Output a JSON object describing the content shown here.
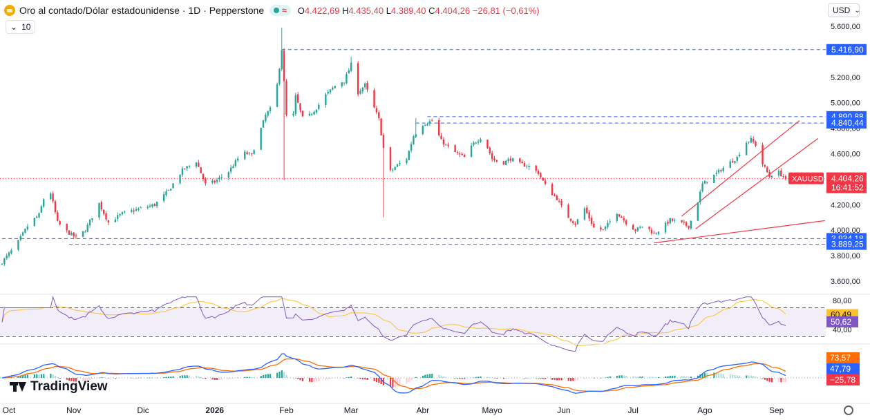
{
  "header": {
    "title": "Oro al contado/Dólar estadounidense · 1D · Pepperstone",
    "wave_glyph": "≈",
    "o_label": "O",
    "o_value": "4.422,69",
    "h_label": "H",
    "h_value": "4.435,40",
    "l_label": "L",
    "l_value": "4.389,40",
    "c_label": "C",
    "c_value": "4.404,26",
    "change": "−26,81 (−0,61%)"
  },
  "indicator_toggle": {
    "chevron": "⌄",
    "count": "10"
  },
  "currency": {
    "label": "USD",
    "chevron": "⌄"
  },
  "logo": {
    "text": "TradingView"
  },
  "colors": {
    "up": "#26a69a",
    "down": "#f23645",
    "level": "#2962ff",
    "trend": "#f23645",
    "rsi": "#7e57c2",
    "rsi_ma": "#fbc02d",
    "macd": "#2962ff",
    "signal": "#ff6d00"
  },
  "chart_data": [
    {
      "type": "candlestick",
      "title": "Oro al contado/Dólar estadounidense · 1D · Pepperstone",
      "symbol": "XAUUSD",
      "yticks": [
        "5.600,00",
        "5.400,00",
        "5.200,00",
        "5.000,00",
        "4.800,00",
        "4.600,00",
        "4.400,00",
        "4.200,00",
        "4.000,00",
        "3.800,00",
        "3.600,00"
      ],
      "ylim": [
        3530,
        5640
      ],
      "x_labels": [
        {
          "label": "Oct",
          "day": 0
        },
        {
          "label": "Nov",
          "day": 31
        },
        {
          "label": "Dic",
          "day": 61
        },
        {
          "label": "2026",
          "day": 92
        },
        {
          "label": "Feb",
          "day": 123
        },
        {
          "label": "Mar",
          "day": 151
        },
        {
          "label": "Abr",
          "day": 182
        },
        {
          "label": "Mayo",
          "day": 212
        },
        {
          "label": "Jun",
          "day": 243
        },
        {
          "label": "Jul",
          "day": 273
        },
        {
          "label": "Ago",
          "day": 304
        },
        {
          "label": "Sep",
          "day": 335
        }
      ],
      "anchors": [
        [
          0,
          3750
        ],
        [
          6,
          3880
        ],
        [
          12,
          4060
        ],
        [
          16,
          4120
        ],
        [
          20,
          4370
        ],
        [
          24,
          4060
        ],
        [
          28,
          3990
        ],
        [
          32,
          3940
        ],
        [
          36,
          4000
        ],
        [
          42,
          4210
        ],
        [
          46,
          4060
        ],
        [
          52,
          4130
        ],
        [
          60,
          4170
        ],
        [
          66,
          4200
        ],
        [
          72,
          4310
        ],
        [
          78,
          4470
        ],
        [
          84,
          4540
        ],
        [
          88,
          4360
        ],
        [
          92,
          4380
        ],
        [
          98,
          4460
        ],
        [
          104,
          4610
        ],
        [
          108,
          4590
        ],
        [
          114,
          4900
        ],
        [
          118,
          5000
        ],
        [
          121,
          5420
        ],
        [
          123,
          4900
        ],
        [
          125,
          4760
        ],
        [
          127,
          5050
        ],
        [
          130,
          4880
        ],
        [
          133,
          4900
        ],
        [
          136,
          4960
        ],
        [
          140,
          5060
        ],
        [
          145,
          5150
        ],
        [
          148,
          5170
        ],
        [
          151,
          5300
        ],
        [
          153,
          5060
        ],
        [
          157,
          5140
        ],
        [
          160,
          5000
        ],
        [
          163,
          4870
        ],
        [
          166,
          4530
        ],
        [
          168,
          4460
        ],
        [
          171,
          4510
        ],
        [
          175,
          4560
        ],
        [
          178,
          4740
        ],
        [
          182,
          4830
        ],
        [
          186,
          4860
        ],
        [
          190,
          4700
        ],
        [
          195,
          4620
        ],
        [
          200,
          4570
        ],
        [
          204,
          4680
        ],
        [
          208,
          4740
        ],
        [
          212,
          4560
        ],
        [
          216,
          4520
        ],
        [
          220,
          4560
        ],
        [
          224,
          4520
        ],
        [
          228,
          4500
        ],
        [
          232,
          4450
        ],
        [
          236,
          4320
        ],
        [
          240,
          4250
        ],
        [
          244,
          4120
        ],
        [
          248,
          4050
        ],
        [
          252,
          4170
        ],
        [
          256,
          4020
        ],
        [
          260,
          4000
        ],
        [
          264,
          4090
        ],
        [
          266,
          4140
        ],
        [
          270,
          4060
        ],
        [
          274,
          4000
        ],
        [
          278,
          4040
        ],
        [
          282,
          3970
        ],
        [
          285,
          4010
        ],
        [
          289,
          4080
        ],
        [
          293,
          4060
        ],
        [
          297,
          4030
        ],
        [
          300,
          4160
        ],
        [
          303,
          4360
        ],
        [
          306,
          4400
        ],
        [
          310,
          4460
        ],
        [
          314,
          4520
        ],
        [
          318,
          4570
        ],
        [
          321,
          4680
        ],
        [
          324,
          4710
        ],
        [
          327,
          4650
        ],
        [
          329,
          4520
        ],
        [
          332,
          4420
        ],
        [
          335,
          4470
        ],
        [
          339,
          4404
        ]
      ],
      "last_price": "4.404,26",
      "last_time": "16:41:52",
      "levels": [
        {
          "label": "5.416,90",
          "value": 5416.9,
          "from_day": 121
        },
        {
          "label": "4.890,88",
          "value": 4890.88,
          "from_day": 184
        },
        {
          "label": "4.840,44",
          "value": 4840.44,
          "from_day": 179
        },
        {
          "label": "3.934,18",
          "value": 3934.18,
          "from_day": 0
        },
        {
          "label": "3.889,25",
          "value": 3889.25,
          "from_day": 29
        }
      ],
      "trendlines": [
        {
          "from": [
            282,
            3900
          ],
          "to": [
            356,
            4075
          ]
        },
        {
          "from": [
            294,
            4110
          ],
          "to": [
            345,
            4860
          ]
        },
        {
          "from": [
            300,
            4010
          ],
          "to": [
            353,
            4720
          ]
        }
      ]
    },
    {
      "type": "line",
      "name": "RSI",
      "ylim": [
        32,
        86
      ],
      "yticks": [
        "80,00",
        "40,00"
      ],
      "band": [
        30,
        70
      ],
      "values_label_rsi": "50,62",
      "values_label_ma": "60,49"
    },
    {
      "type": "bar",
      "name": "MACD",
      "labels": [
        "73,57",
        "47,79",
        "−25,78"
      ]
    }
  ]
}
